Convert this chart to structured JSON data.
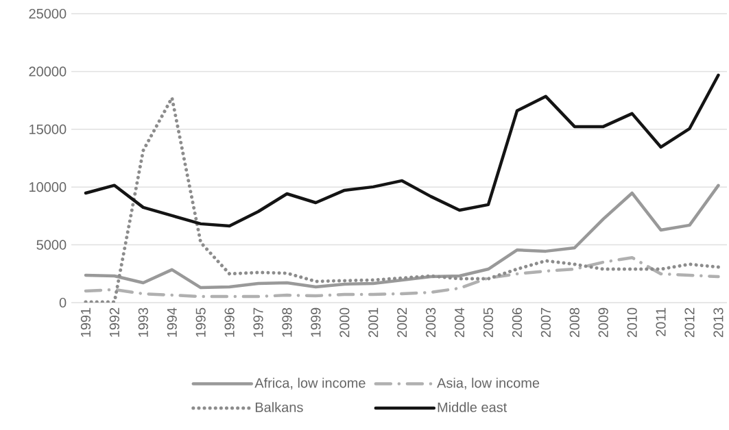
{
  "chart_data": {
    "type": "line",
    "categories": [
      "1991",
      "1992",
      "1993",
      "1994",
      "1995",
      "1996",
      "1997",
      "1998",
      "1999",
      "2000",
      "2001",
      "2002",
      "2003",
      "2004",
      "2005",
      "2006",
      "2007",
      "2008",
      "2009",
      "2010",
      "2011",
      "2012",
      "2013"
    ],
    "series": [
      {
        "name": "Africa, low income",
        "color": "#999999",
        "line_style": "solid",
        "values": [
          2370,
          2310,
          1720,
          2850,
          1300,
          1360,
          1660,
          1720,
          1360,
          1600,
          1660,
          1960,
          2250,
          2310,
          2900,
          4560,
          4450,
          4740,
          7230,
          9480,
          6280,
          6700,
          10140
        ]
      },
      {
        "name": "Asia, low income",
        "color": "#b0b0b0",
        "line_style": "dashed",
        "values": [
          1010,
          1130,
          770,
          650,
          530,
          530,
          530,
          650,
          590,
          710,
          710,
          770,
          890,
          1250,
          2130,
          2490,
          2730,
          2900,
          3500,
          3900,
          2490,
          2370,
          2250
        ]
      },
      {
        "name": "Balkans",
        "color": "#8c8c8c",
        "line_style": "dotted",
        "values": [
          60,
          60,
          13160,
          17720,
          5200,
          2490,
          2610,
          2550,
          1840,
          1900,
          1960,
          2130,
          2310,
          2070,
          2070,
          2900,
          3620,
          3320,
          2900,
          2900,
          2900,
          3320,
          3080
        ]
      },
      {
        "name": "Middle east",
        "color": "#141414",
        "line_style": "solid",
        "values": [
          9480,
          10150,
          8240,
          7530,
          6820,
          6640,
          7880,
          9420,
          8650,
          9720,
          10020,
          10550,
          9190,
          8000,
          8480,
          16600,
          17840,
          15230,
          15230,
          16360,
          13460,
          15060,
          19680
        ]
      }
    ],
    "ylim": [
      0,
      25000
    ],
    "yticks": [
      0,
      5000,
      10000,
      15000,
      20000,
      25000
    ],
    "grid": "y",
    "legend": "bottom",
    "marker": "none"
  }
}
